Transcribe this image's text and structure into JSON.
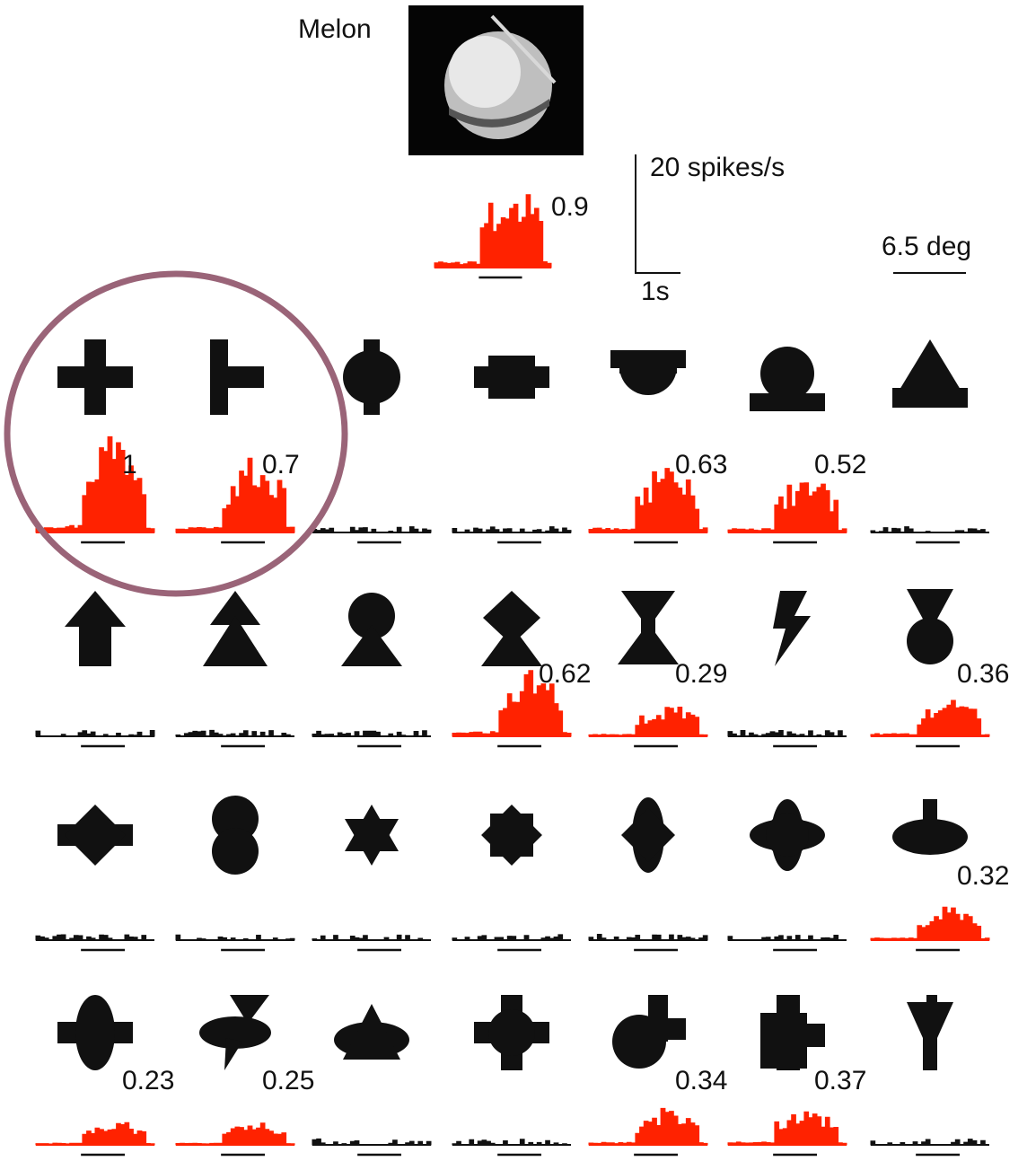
{
  "reference": {
    "label": "Melon",
    "image_description_icon": "melon-photo",
    "value": "0.9"
  },
  "scale_bars": {
    "rate": "20 spikes/s",
    "time": "1s",
    "size": "6.5 deg"
  },
  "colors": {
    "responsive": "#ff2200",
    "nonresponsive": "#111111",
    "highlight_circle": "#9a6478"
  },
  "rows": [
    [
      {
        "shape": "cross",
        "value": "1",
        "responsive": true
      },
      {
        "shape": "t-sideways",
        "value": "0.7",
        "responsive": true
      },
      {
        "shape": "circle-vertical-bar",
        "value": "",
        "responsive": false
      },
      {
        "shape": "bar-horizontal-rect",
        "value": "",
        "responsive": false
      },
      {
        "shape": "half-disc-under-bar",
        "value": "0.63",
        "responsive": true
      },
      {
        "shape": "circle-on-bar",
        "value": "0.52",
        "responsive": true
      },
      {
        "shape": "triangle-on-bar",
        "value": "",
        "responsive": false
      }
    ],
    [
      {
        "shape": "arrow-up",
        "value": "",
        "responsive": false
      },
      {
        "shape": "double-triangle",
        "value": "",
        "responsive": false
      },
      {
        "shape": "circle-on-triangle",
        "value": "",
        "responsive": false
      },
      {
        "shape": "diamond-on-triangle",
        "value": "0.62",
        "responsive": true
      },
      {
        "shape": "hourglass",
        "value": "0.29",
        "responsive": true
      },
      {
        "shape": "lightning",
        "value": "",
        "responsive": false
      },
      {
        "shape": "circle-under-triangle",
        "value": "0.36",
        "responsive": true
      }
    ],
    [
      {
        "shape": "diamond-horizontal-bar",
        "value": "",
        "responsive": false
      },
      {
        "shape": "stacked-circles",
        "value": "",
        "responsive": false
      },
      {
        "shape": "star-six",
        "value": "",
        "responsive": false
      },
      {
        "shape": "star-eight",
        "value": "",
        "responsive": false
      },
      {
        "shape": "vertical-oval-diamond",
        "value": "",
        "responsive": false
      },
      {
        "shape": "four-lobe",
        "value": "",
        "responsive": false
      },
      {
        "shape": "ellipse-with-stem",
        "value": "0.32",
        "responsive": true
      }
    ],
    [
      {
        "shape": "oval-horizontal-bar",
        "value": "0.23",
        "responsive": true
      },
      {
        "shape": "ellipse-triangle-beak",
        "value": "0.25",
        "responsive": true
      },
      {
        "shape": "triangle-on-ellipse",
        "value": "",
        "responsive": false
      },
      {
        "shape": "circle-cross",
        "value": "",
        "responsive": false
      },
      {
        "shape": "circle-with-corner-bar",
        "value": "0.34",
        "responsive": true
      },
      {
        "shape": "square-cross",
        "value": "0.37",
        "responsive": true
      },
      {
        "shape": "y-funnel",
        "value": "",
        "responsive": false
      }
    ]
  ]
}
